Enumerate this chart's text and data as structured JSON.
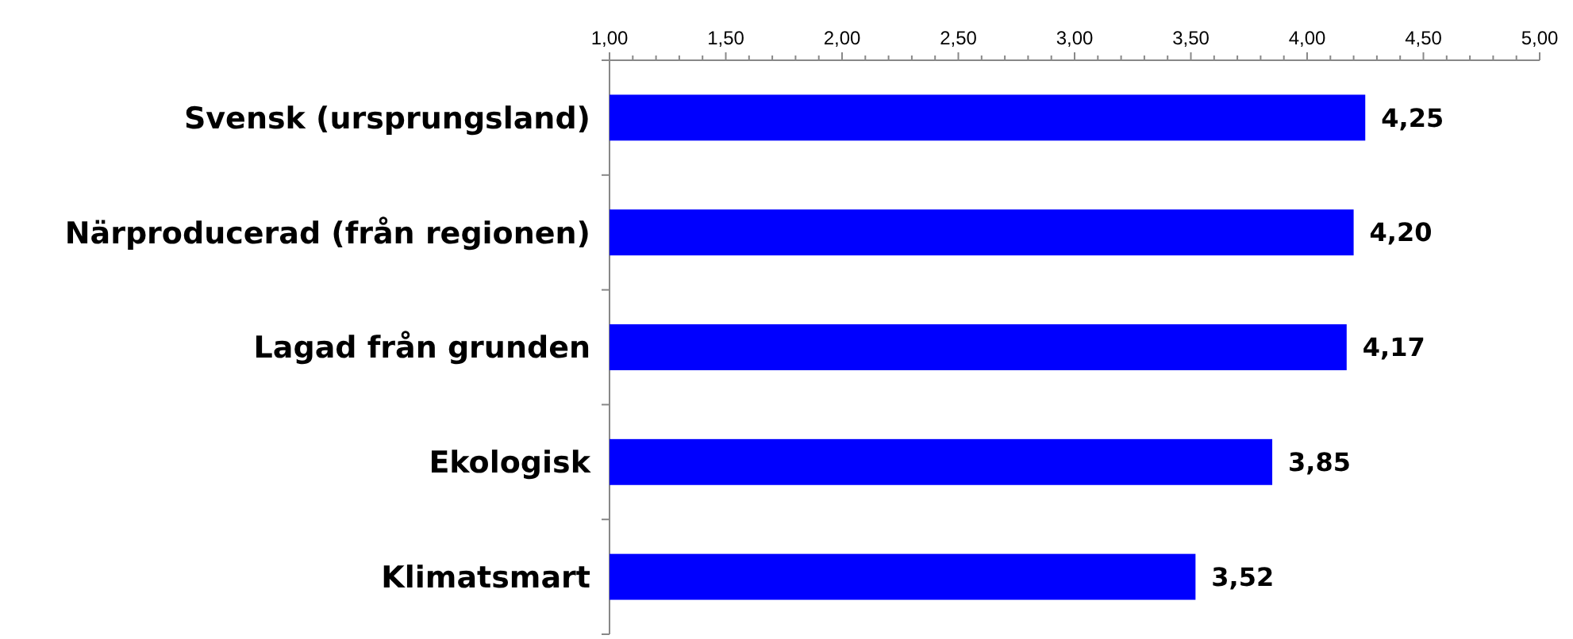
{
  "chart_data": {
    "type": "bar",
    "orientation": "horizontal",
    "categories": [
      "Svensk (ursprungsland)",
      "Närproducerad (från regionen)",
      "Lagad från grunden",
      "Ekologisk",
      "Klimatsmart"
    ],
    "values": [
      4.25,
      4.2,
      4.17,
      3.85,
      3.52
    ],
    "value_labels": [
      "4,25",
      "4,20",
      "4,17",
      "3,85",
      "3,52"
    ],
    "color": "#0000ff",
    "xlim": [
      1,
      5
    ],
    "xticks": [
      {
        "value": 1,
        "label": "1,00"
      },
      {
        "value": 1.1,
        "label": null
      },
      {
        "value": 1.2,
        "label": null
      },
      {
        "value": 1.3,
        "label": null
      },
      {
        "value": 1.4,
        "label": null
      },
      {
        "value": 1.5,
        "label": "1,50"
      },
      {
        "value": 1.6,
        "label": null
      },
      {
        "value": 1.7,
        "label": null
      },
      {
        "value": 1.8,
        "label": null
      },
      {
        "value": 1.9,
        "label": null
      },
      {
        "value": 2,
        "label": "2,00"
      },
      {
        "value": 2.1,
        "label": null
      },
      {
        "value": 2.2,
        "label": null
      },
      {
        "value": 2.3,
        "label": null
      },
      {
        "value": 2.4,
        "label": null
      },
      {
        "value": 2.5,
        "label": "2,50"
      },
      {
        "value": 2.6,
        "label": null
      },
      {
        "value": 2.7,
        "label": null
      },
      {
        "value": 2.8,
        "label": null
      },
      {
        "value": 2.9,
        "label": null
      },
      {
        "value": 3,
        "label": "3,00"
      },
      {
        "value": 3.1,
        "label": null
      },
      {
        "value": 3.2,
        "label": null
      },
      {
        "value": 3.3,
        "label": null
      },
      {
        "value": 3.4,
        "label": null
      },
      {
        "value": 3.5,
        "label": "3,50"
      },
      {
        "value": 3.6,
        "label": null
      },
      {
        "value": 3.7,
        "label": null
      },
      {
        "value": 3.8,
        "label": null
      },
      {
        "value": 3.9,
        "label": null
      },
      {
        "value": 4,
        "label": "4,00"
      },
      {
        "value": 4.1,
        "label": null
      },
      {
        "value": 4.2,
        "label": null
      },
      {
        "value": 4.3,
        "label": null
      },
      {
        "value": 4.4,
        "label": null
      },
      {
        "value": 4.5,
        "label": "4,50"
      },
      {
        "value": 4.6,
        "label": null
      },
      {
        "value": 4.7,
        "label": null
      },
      {
        "value": 4.8,
        "label": null
      },
      {
        "value": 4.9,
        "label": null
      },
      {
        "value": 5,
        "label": "5,00"
      }
    ],
    "grid": false
  }
}
